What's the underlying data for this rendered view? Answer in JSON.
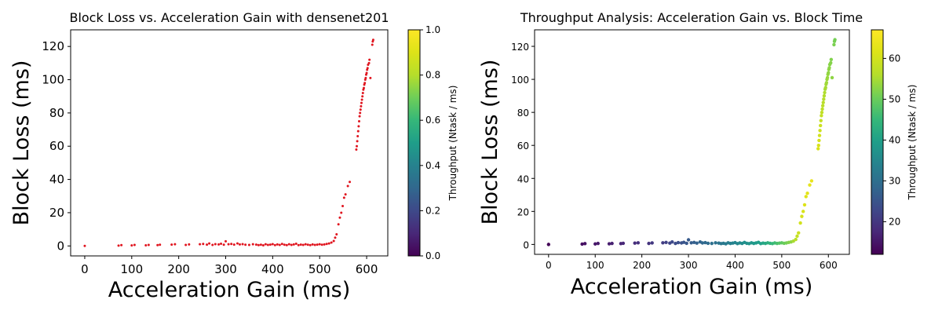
{
  "chart_data": [
    {
      "type": "scatter",
      "title": "Block Loss vs. Acceleration Gain with densenet201",
      "xlabel": "Acceleration Gain (ms)",
      "ylabel": "Block Loss (ms)",
      "xlim": [
        -30,
        645
      ],
      "ylim": [
        -6,
        130
      ],
      "xticks": [
        0,
        100,
        200,
        300,
        400,
        500,
        600
      ],
      "yticks": [
        0,
        20,
        40,
        60,
        80,
        100,
        120
      ],
      "marker_color": "#e0151f",
      "colorbar": {
        "label": "Throughput (Ntask / ms)",
        "range": [
          0,
          1
        ],
        "ticks": [
          0.0,
          0.2,
          0.4,
          0.6,
          0.8,
          1.0
        ],
        "colormap": "viridis"
      },
      "series_ref": "points"
    },
    {
      "type": "scatter",
      "title": "Throughput Analysis: Acceleration Gain vs. Block Time",
      "xlabel": "Acceleration Gain (ms)",
      "ylabel": "Block Loss (ms)",
      "xlim": [
        -30,
        645
      ],
      "ylim": [
        -6,
        130
      ],
      "xticks": [
        0,
        100,
        200,
        300,
        400,
        500,
        600
      ],
      "yticks": [
        0,
        20,
        40,
        60,
        80,
        100,
        120
      ],
      "colorbar": {
        "label": "Throughput (Ntask / ms)",
        "range": [
          12,
          67
        ],
        "ticks": [
          20,
          30,
          40,
          50,
          60
        ],
        "colormap": "viridis"
      },
      "color_by": "throughput",
      "series_ref": "points"
    }
  ],
  "points": [
    [
      0,
      0,
      12.5
    ],
    [
      72,
      0.2,
      14
    ],
    [
      78,
      0.5,
      14.5
    ],
    [
      100,
      0.3,
      15
    ],
    [
      106,
      0.6,
      15.5
    ],
    [
      130,
      0.4,
      16
    ],
    [
      136,
      0.6,
      16.5
    ],
    [
      155,
      0.5,
      17
    ],
    [
      160,
      0.7,
      17.5
    ],
    [
      185,
      0.8,
      18.5
    ],
    [
      192,
      1.0,
      19
    ],
    [
      215,
      0.6,
      19.5
    ],
    [
      222,
      0.9,
      20
    ],
    [
      245,
      1.0,
      21
    ],
    [
      252,
      1.2,
      22
    ],
    [
      260,
      0.8,
      22.5
    ],
    [
      265,
      1.5,
      23
    ],
    [
      272,
      0.6,
      23.5
    ],
    [
      278,
      1.1,
      24
    ],
    [
      285,
      0.9,
      24.5
    ],
    [
      290,
      1.3,
      25
    ],
    [
      296,
      0.7,
      25.5
    ],
    [
      300,
      2.8,
      26
    ],
    [
      306,
      1.0,
      26.5
    ],
    [
      312,
      1.2,
      27
    ],
    [
      318,
      0.8,
      27.5
    ],
    [
      325,
      1.5,
      28
    ],
    [
      330,
      0.9,
      28.5
    ],
    [
      336,
      1.1,
      29
    ],
    [
      342,
      0.7,
      29.5
    ],
    [
      350,
      0.6,
      30
    ],
    [
      358,
      1.0,
      30.5
    ],
    [
      365,
      0.8,
      31
    ],
    [
      370,
      0.5,
      31.5
    ],
    [
      375,
      0.7,
      32
    ],
    [
      380,
      0.4,
      32.5
    ],
    [
      385,
      1.0,
      33
    ],
    [
      390,
      0.6,
      33.5
    ],
    [
      395,
      0.8,
      34
    ],
    [
      400,
      1.1,
      34.5
    ],
    [
      405,
      0.5,
      35
    ],
    [
      410,
      0.9,
      35.5
    ],
    [
      415,
      0.6,
      36
    ],
    [
      420,
      1.2,
      36.5
    ],
    [
      425,
      0.7,
      37
    ],
    [
      430,
      0.5,
      37.5
    ],
    [
      435,
      1.0,
      38
    ],
    [
      440,
      0.6,
      38.5
    ],
    [
      445,
      0.9,
      39
    ],
    [
      450,
      1.3,
      39.5
    ],
    [
      455,
      0.5,
      40
    ],
    [
      460,
      0.8,
      41
    ],
    [
      465,
      0.6,
      42
    ],
    [
      470,
      1.0,
      43
    ],
    [
      475,
      0.7,
      44
    ],
    [
      480,
      0.5,
      45
    ],
    [
      485,
      0.9,
      46
    ],
    [
      490,
      0.6,
      47
    ],
    [
      495,
      0.8,
      48
    ],
    [
      500,
      1.0,
      49
    ],
    [
      505,
      0.7,
      50
    ],
    [
      510,
      0.9,
      51
    ],
    [
      515,
      1.2,
      52
    ],
    [
      520,
      1.5,
      53
    ],
    [
      525,
      2.0,
      55
    ],
    [
      530,
      3.0,
      57
    ],
    [
      533,
      5.0,
      58
    ],
    [
      536,
      7.0,
      59
    ],
    [
      540,
      13,
      60
    ],
    [
      543,
      17,
      60.5
    ],
    [
      546,
      20,
      61
    ],
    [
      549,
      24,
      61.5
    ],
    [
      552,
      29,
      62
    ],
    [
      555,
      31,
      62.5
    ],
    [
      560,
      36,
      63
    ],
    [
      564,
      38.5,
      63.5
    ],
    [
      578,
      58,
      61
    ],
    [
      579,
      60,
      60.8
    ],
    [
      580,
      63,
      60.5
    ],
    [
      581,
      66,
      60
    ],
    [
      582,
      69,
      59.5
    ],
    [
      583,
      72,
      59
    ],
    [
      584,
      75,
      58.5
    ],
    [
      585,
      78,
      58
    ],
    [
      586,
      80,
      57.5
    ],
    [
      587,
      82,
      57
    ],
    [
      588,
      84,
      56.8
    ],
    [
      589,
      86,
      56.5
    ],
    [
      590,
      88,
      56
    ],
    [
      591,
      90,
      55.8
    ],
    [
      592,
      92,
      55.5
    ],
    [
      593,
      94,
      55
    ],
    [
      594,
      95,
      54.8
    ],
    [
      595,
      97,
      54.5
    ],
    [
      596,
      98,
      54.2
    ],
    [
      597,
      100,
      54
    ],
    [
      598,
      101,
      53.8
    ],
    [
      599,
      103,
      53.5
    ],
    [
      600,
      104,
      53.2
    ],
    [
      601,
      106,
      53
    ],
    [
      602,
      107,
      52.8
    ],
    [
      603,
      109,
      52.5
    ],
    [
      605,
      110,
      52.2
    ],
    [
      606,
      112,
      52
    ],
    [
      608,
      101,
      53
    ],
    [
      612,
      121,
      51.5
    ],
    [
      613,
      123,
      51.2
    ],
    [
      614,
      124,
      51
    ]
  ]
}
